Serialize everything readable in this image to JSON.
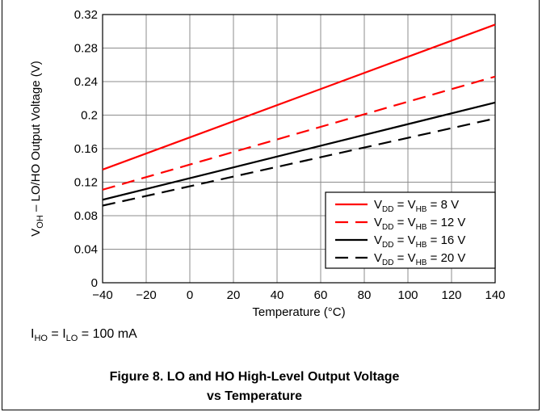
{
  "chart_data": {
    "type": "line",
    "xlabel": "Temperature (°C)",
    "ylabel": {
      "prefix": "V",
      "sub": "OH",
      "rest": " – LO/HO Output Voltage (V)"
    },
    "xlim": [
      -40,
      140
    ],
    "ylim": [
      0,
      0.32
    ],
    "xticks": [
      "−40",
      "−20",
      "0",
      "20",
      "40",
      "60",
      "80",
      "100",
      "120",
      "140"
    ],
    "yticks": [
      "0",
      "0.04",
      "0.08",
      "0.12",
      "0.16",
      "0.2",
      "0.24",
      "0.28",
      "0.32"
    ],
    "grid": true,
    "legend_position": "bottom-right",
    "x": [
      -40,
      140
    ],
    "series": [
      {
        "name": "VDD = VHB = 8 V",
        "vdd": "8",
        "values": [
          0.135,
          0.308
        ],
        "color": "#ff0000",
        "dash": "solid"
      },
      {
        "name": "VDD = VHB = 12 V",
        "vdd": "12",
        "values": [
          0.111,
          0.246
        ],
        "color": "#ff0000",
        "dash": "dashed"
      },
      {
        "name": "VDD = VHB = 16 V",
        "vdd": "16",
        "values": [
          0.099,
          0.215
        ],
        "color": "#000000",
        "dash": "solid"
      },
      {
        "name": "VDD = VHB = 20 V",
        "vdd": "20",
        "values": [
          0.092,
          0.196
        ],
        "color": "#000000",
        "dash": "dashed"
      }
    ]
  },
  "condition": {
    "i1": "I",
    "s1": "HO",
    "mid": " = I",
    "s2": "LO",
    "tail": " = 100 mA"
  },
  "caption": {
    "line1": "Figure 8. LO and HO High-Level Output Voltage",
    "line2": "vs Temperature"
  }
}
